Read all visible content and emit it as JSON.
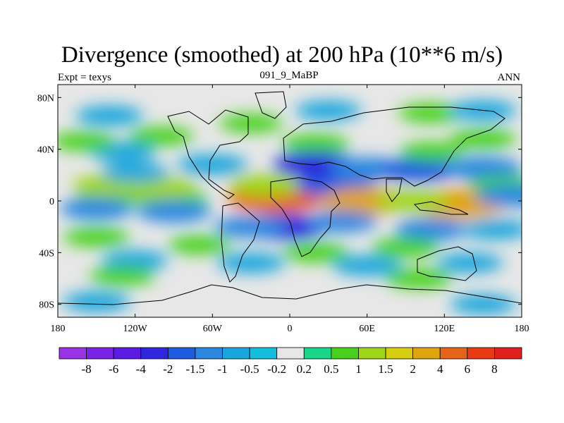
{
  "header": {
    "title": "Divergence (smoothed) at 200 hPa (10**6 m/s)",
    "left_label": "Expt = texys",
    "center_label": "091_9_MaBP",
    "right_label": "ANN"
  },
  "chart_data": {
    "type": "heatmap",
    "title": "Divergence (smoothed) at 200 hPa (10**6 m/s)",
    "xlabel": "",
    "ylabel": "",
    "xlim": [
      -180,
      180
    ],
    "ylim": [
      -90,
      90
    ],
    "x_ticks": [
      {
        "value": -180,
        "label": "180"
      },
      {
        "value": -120,
        "label": "120W"
      },
      {
        "value": -60,
        "label": "60W"
      },
      {
        "value": 0,
        "label": "0"
      },
      {
        "value": 60,
        "label": "60E"
      },
      {
        "value": 120,
        "label": "120E"
      },
      {
        "value": 180,
        "label": "180"
      }
    ],
    "y_ticks": [
      {
        "value": 80,
        "label": "80N"
      },
      {
        "value": 40,
        "label": "40N"
      },
      {
        "value": 0,
        "label": "0"
      },
      {
        "value": -40,
        "label": "40S"
      },
      {
        "value": -80,
        "label": "80S"
      }
    ],
    "colorbar": {
      "boundary_labels": [
        "-8",
        "-6",
        "-4",
        "-2",
        "-1.5",
        "-1",
        "-0.5",
        "-0.2",
        "0.2",
        "0.5",
        "1",
        "1.5",
        "2",
        "4",
        "6",
        "8"
      ],
      "colors": [
        "#9a33e6",
        "#7a22e6",
        "#5c1be0",
        "#2f26dd",
        "#1d5cdf",
        "#2b86e0",
        "#1aa6dc",
        "#15bddc",
        "#e7e7e7",
        "#17d68a",
        "#47d11e",
        "#9fd51a",
        "#d6cc10",
        "#e0a410",
        "#e6641a",
        "#e83b14",
        "#e01f1f"
      ]
    },
    "regions": [
      {
        "lon": -140,
        "lat": 2,
        "value": 0.6
      },
      {
        "lon": -90,
        "lat": 1,
        "value": 0.8
      },
      {
        "lon": -140,
        "lat": 12,
        "value": 1.2
      },
      {
        "lon": -100,
        "lat": 10,
        "value": 1.1
      },
      {
        "lon": -150,
        "lat": -6,
        "value": -1.2
      },
      {
        "lon": -90,
        "lat": -8,
        "value": -1.3
      },
      {
        "lon": -120,
        "lat": 22,
        "value": -0.8
      },
      {
        "lon": -60,
        "lat": 28,
        "value": -1.0
      },
      {
        "lon": -130,
        "lat": 38,
        "value": -0.7
      },
      {
        "lon": -160,
        "lat": 46,
        "value": 0.6
      },
      {
        "lon": -100,
        "lat": 50,
        "value": 0.6
      },
      {
        "lon": -140,
        "lat": 66,
        "value": -0.8
      },
      {
        "lon": -30,
        "lat": 60,
        "value": 0.5
      },
      {
        "lon": 30,
        "lat": 70,
        "value": -0.7
      },
      {
        "lon": 110,
        "lat": 68,
        "value": 0.7
      },
      {
        "lon": 150,
        "lat": 70,
        "value": -0.8
      },
      {
        "lon": -10,
        "lat": 2,
        "value": 4.0
      },
      {
        "lon": -18,
        "lat": 12,
        "value": 1.4
      },
      {
        "lon": 35,
        "lat": 12,
        "value": -1.6
      },
      {
        "lon": 20,
        "lat": 44,
        "value": 0.8
      },
      {
        "lon": 20,
        "lat": 28,
        "value": -2.1
      },
      {
        "lon": 60,
        "lat": 25,
        "value": -1.4
      },
      {
        "lon": 100,
        "lat": 24,
        "value": -1.6
      },
      {
        "lon": 150,
        "lat": 25,
        "value": -1.5
      },
      {
        "lon": 110,
        "lat": 38,
        "value": 0.6
      },
      {
        "lon": 150,
        "lat": 48,
        "value": 0.7
      },
      {
        "lon": 165,
        "lat": 12,
        "value": 0.8
      },
      {
        "lon": 60,
        "lat": 0,
        "value": 2.6
      },
      {
        "lon": 130,
        "lat": -2,
        "value": 3.0
      },
      {
        "lon": 95,
        "lat": 0,
        "value": 1.3
      },
      {
        "lon": 172,
        "lat": 4,
        "value": -1.2
      },
      {
        "lon": -5,
        "lat": -20,
        "value": -2.2
      },
      {
        "lon": -30,
        "lat": -20,
        "value": -1.2
      },
      {
        "lon": 40,
        "lat": -16,
        "value": -1.1
      },
      {
        "lon": 110,
        "lat": -22,
        "value": -1.2
      },
      {
        "lon": 160,
        "lat": -22,
        "value": -0.8
      },
      {
        "lon": -150,
        "lat": -28,
        "value": 0.7
      },
      {
        "lon": -70,
        "lat": -34,
        "value": 0.5
      },
      {
        "lon": 20,
        "lat": -40,
        "value": 0.7
      },
      {
        "lon": 90,
        "lat": -36,
        "value": 0.8
      },
      {
        "lon": -120,
        "lat": -46,
        "value": -0.7
      },
      {
        "lon": -30,
        "lat": -48,
        "value": -0.8
      },
      {
        "lon": 60,
        "lat": -50,
        "value": -0.9
      },
      {
        "lon": 140,
        "lat": -48,
        "value": -0.7
      },
      {
        "lon": -130,
        "lat": -58,
        "value": 0.7
      },
      {
        "lon": 100,
        "lat": -60,
        "value": 0.8
      },
      {
        "lon": -150,
        "lat": -78,
        "value": -0.8
      },
      {
        "lon": 150,
        "lat": -80,
        "value": -0.7
      }
    ]
  }
}
